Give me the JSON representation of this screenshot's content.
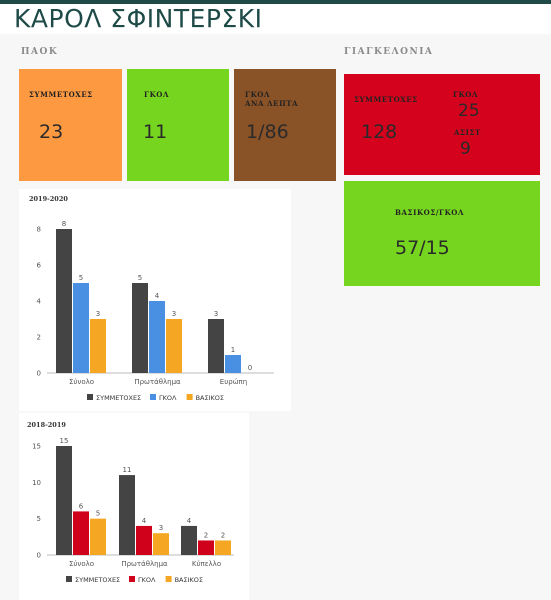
{
  "player_name": "ΚΑΡΟΛ ΣΦΙΝΤΕΡΣΚΙ",
  "paok": {
    "heading": "ΠΑΟΚ",
    "appearances_label": "ΣΥΜΜΕΤΟΧΕΣ",
    "appearances": "23",
    "goals_label": "ΓΚΟΛ",
    "goals": "11",
    "gpm_label_line1": "ΓΚΟΛ",
    "gpm_label_line2": "ΑΝΑ ΛΕΠΤΑ",
    "gpm": "1/86"
  },
  "poland": {
    "heading": "ΓΙΑΓΚΕΛΟΝΙΑ",
    "appearances_label": "ΣΥΜΜΕΤΟΧΕΣ",
    "appearances": "128",
    "goals_label": "ΓΚΟΛ",
    "goals": "25",
    "assists_label": "ΑΣΙΣΤ",
    "assists": "9",
    "starter_label": "ΒΑΣΙΚΟΣ/ΓΚΟΛ",
    "starter": "57/15"
  },
  "colors": {
    "orange": "#fd9a41",
    "green": "#76d51f",
    "brown": "#8a5227",
    "red": "#d4021c",
    "dark": "#444444",
    "blue": "#4a90e2",
    "yellow": "#f5a623",
    "crimson": "#d0021b"
  },
  "chart_data": [
    {
      "type": "bar",
      "title": "2019-2020",
      "categories": [
        "Σύνολο",
        "Πρωτάθλημα",
        "Ευρώπη"
      ],
      "series": [
        {
          "name": "ΣΥΜΜΕΤΟΧΕΣ",
          "values": [
            8,
            5,
            3
          ]
        },
        {
          "name": "ΓΚΟΛ",
          "values": [
            5,
            4,
            1
          ]
        },
        {
          "name": "ΒΑΣΙΚΟΣ",
          "values": [
            3,
            3,
            0
          ]
        }
      ],
      "yticks": [
        "0",
        "2",
        "4",
        "6",
        "8"
      ],
      "ylim": [
        0,
        8
      ],
      "grid": false,
      "legend_position": "bottom"
    },
    {
      "type": "bar",
      "title": "2018-2019",
      "categories": [
        "Σύνολο",
        "Πρωτάθλημα",
        "Κύπελλο"
      ],
      "series": [
        {
          "name": "ΣΥΜΜΕΤΟΧΕΣ",
          "values": [
            15,
            11,
            4
          ]
        },
        {
          "name": "ΓΚΟΛ",
          "values": [
            6,
            4,
            2
          ]
        },
        {
          "name": "ΒΑΣΙΚΟΣ",
          "values": [
            5,
            3,
            2
          ]
        }
      ],
      "yticks": [
        "0",
        "5",
        "10",
        "15"
      ],
      "ylim": [
        0,
        15
      ],
      "grid": false,
      "legend_position": "bottom"
    }
  ]
}
